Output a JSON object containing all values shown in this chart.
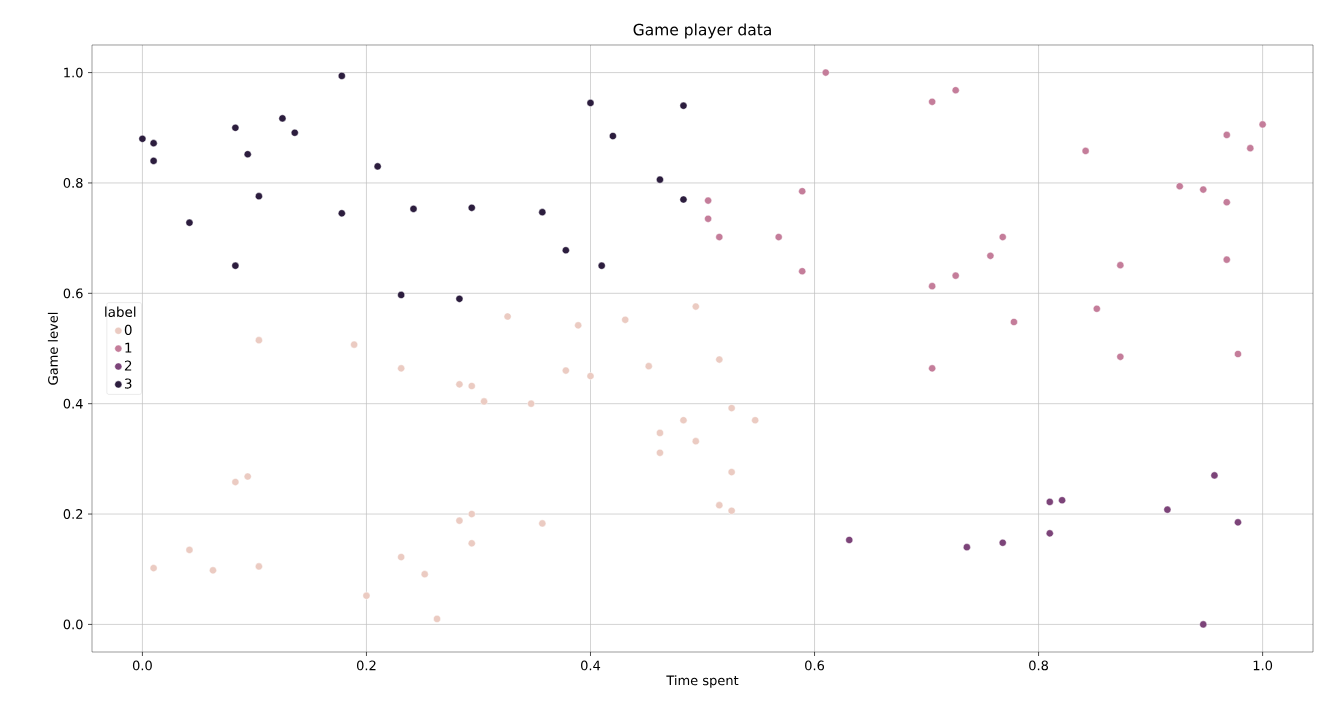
{
  "chart_data": {
    "type": "scatter",
    "title": "Game player data",
    "xlabel": "Time spent",
    "ylabel": "Game level",
    "legend_title": "label",
    "legend": "left",
    "grid": true,
    "marker": "circle",
    "xlim": [
      -0.045,
      1.045
    ],
    "ylim": [
      -0.05,
      1.05
    ],
    "xticks": [
      {
        "value": 0,
        "label": "0.0"
      },
      {
        "value": 0.2,
        "label": "0.2"
      },
      {
        "value": 0.4,
        "label": "0.4"
      },
      {
        "value": 0.6,
        "label": "0.6"
      },
      {
        "value": 0.8,
        "label": "0.8"
      },
      {
        "value": 1,
        "label": "1.0"
      }
    ],
    "yticks": [
      {
        "value": 0,
        "label": "0.0"
      },
      {
        "value": 0.2,
        "label": "0.2"
      },
      {
        "value": 0.4,
        "label": "0.4"
      },
      {
        "value": 0.6,
        "label": "0.6"
      },
      {
        "value": 0.8,
        "label": "0.8"
      },
      {
        "value": 1,
        "label": "1.0"
      }
    ],
    "series": [
      {
        "name": "0",
        "color": "#ebcbc2",
        "x": [
          0.01,
          0.042,
          0.063,
          0.083,
          0.094,
          0.104,
          0.104,
          0.189,
          0.2,
          0.231,
          0.231,
          0.252,
          0.263,
          0.283,
          0.294,
          0.283,
          0.294,
          0.294,
          0.305,
          0.326,
          0.347,
          0.357,
          0.378,
          0.389,
          0.4,
          0.431,
          0.452,
          0.462,
          0.462,
          0.483,
          0.494,
          0.494,
          0.515,
          0.515,
          0.526,
          0.526,
          0.526,
          0.547
        ],
        "values": [
          0.102,
          0.135,
          0.098,
          0.258,
          0.268,
          0.515,
          0.105,
          0.507,
          0.052,
          0.464,
          0.122,
          0.091,
          0.01,
          0.435,
          0.432,
          0.188,
          0.2,
          0.147,
          0.404,
          0.558,
          0.4,
          0.183,
          0.46,
          0.542,
          0.45,
          0.552,
          0.468,
          0.347,
          0.311,
          0.37,
          0.576,
          0.332,
          0.48,
          0.216,
          0.392,
          0.276,
          0.206,
          0.37
        ]
      },
      {
        "name": "1",
        "color": "#c47d9a",
        "x": [
          0.505,
          0.505,
          0.515,
          0.568,
          0.589,
          0.589,
          0.61,
          0.705,
          0.726,
          0.705,
          0.726,
          0.705,
          0.757,
          0.768,
          0.778,
          0.842,
          0.852,
          0.873,
          0.873,
          0.926,
          0.947,
          0.968,
          0.968,
          0.968,
          0.978,
          0.989,
          1.0
        ],
        "values": [
          0.768,
          0.735,
          0.702,
          0.702,
          0.785,
          0.64,
          1.0,
          0.947,
          0.968,
          0.613,
          0.632,
          0.464,
          0.668,
          0.702,
          0.548,
          0.858,
          0.572,
          0.651,
          0.485,
          0.794,
          0.788,
          0.887,
          0.765,
          0.661,
          0.49,
          0.863,
          0.906
        ]
      },
      {
        "name": "2",
        "color": "#7c4479",
        "x": [
          0.631,
          0.736,
          0.768,
          0.81,
          0.821,
          0.81,
          0.915,
          0.947,
          0.957,
          0.978
        ],
        "values": [
          0.153,
          0.14,
          0.148,
          0.222,
          0.225,
          0.165,
          0.208,
          0.0,
          0.27,
          0.185
        ]
      },
      {
        "name": "3",
        "color": "#2c1d3e",
        "x": [
          0.0,
          0.01,
          0.01,
          0.042,
          0.083,
          0.094,
          0.104,
          0.083,
          0.125,
          0.136,
          0.178,
          0.178,
          0.21,
          0.242,
          0.231,
          0.283,
          0.294,
          0.357,
          0.378,
          0.4,
          0.41,
          0.42,
          0.462,
          0.483,
          0.483
        ],
        "values": [
          0.88,
          0.872,
          0.84,
          0.728,
          0.9,
          0.852,
          0.776,
          0.65,
          0.917,
          0.891,
          0.994,
          0.745,
          0.83,
          0.753,
          0.597,
          0.59,
          0.755,
          0.747,
          0.678,
          0.945,
          0.65,
          0.885,
          0.806,
          0.94,
          0.77
        ]
      }
    ]
  }
}
